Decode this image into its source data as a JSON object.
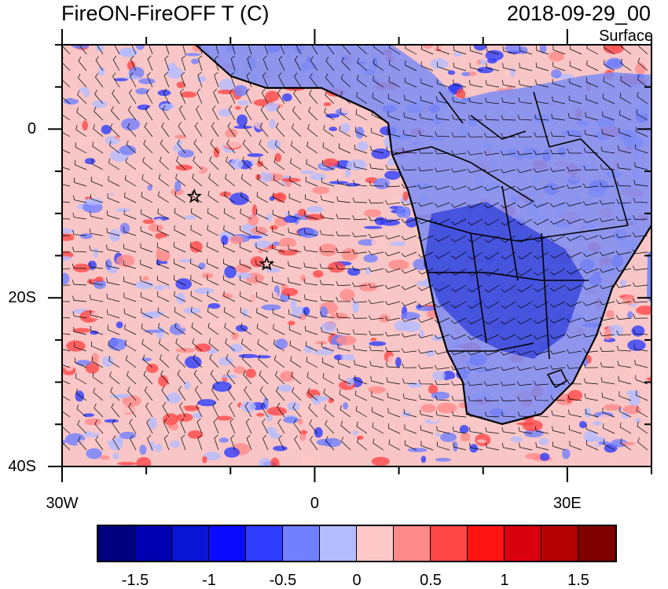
{
  "title_left": "FireON-FireOFF T (C)",
  "title_right": "2018-09-29_00",
  "subtitle": "Surface",
  "map": {
    "variable": "T difference",
    "lat_range": [
      -40,
      10
    ],
    "lon_range": [
      -30,
      40
    ],
    "lat_ticks": [
      {
        "value": 0,
        "label": "0"
      },
      {
        "value": -20,
        "label": "20S"
      },
      {
        "value": -40,
        "label": "40S"
      }
    ],
    "lon_ticks": [
      {
        "value": -30,
        "label": "30W"
      },
      {
        "value": 0,
        "label": "0"
      },
      {
        "value": 30,
        "label": "30E"
      }
    ],
    "markers": [
      {
        "name": "star",
        "lon": -14.3,
        "lat": -8.0
      },
      {
        "name": "star",
        "lon": -5.7,
        "lat": -16.0
      }
    ]
  },
  "colorbar": {
    "colors": [
      "#00007f",
      "#0000b3",
      "#0a14d4",
      "#0a0aff",
      "#2e3dff",
      "#7080ff",
      "#b4bcff",
      "#ffc8c8",
      "#ff8a8a",
      "#ff4747",
      "#ff1414",
      "#d9000f",
      "#b30000",
      "#800000"
    ],
    "labels": [
      {
        "text": "-1.5",
        "index": 1
      },
      {
        "text": "-1",
        "index": 3
      },
      {
        "text": "-0.5",
        "index": 5
      },
      {
        "text": "0",
        "index": 7
      },
      {
        "text": "0.5",
        "index": 9
      },
      {
        "text": "1",
        "index": 11
      },
      {
        "text": "1.5",
        "index": 13
      }
    ]
  }
}
